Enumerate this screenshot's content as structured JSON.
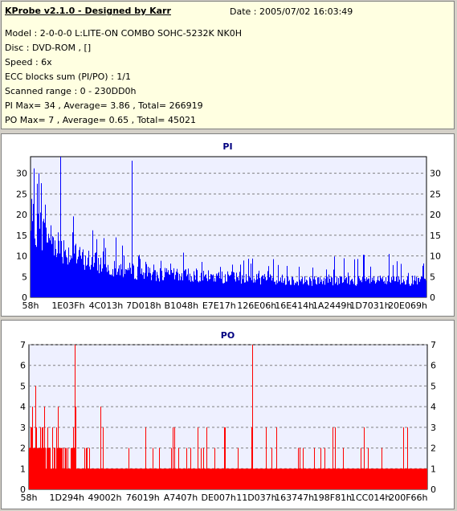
{
  "info": {
    "title": "KProbe v2.1.0 - Designed by Karr",
    "date": "Date : 2005/07/02 16:03:49",
    "lines": [
      "Model : 2-0-0-0 L:LITE-ON COMBO SOHC-5232K NK0H",
      "Disc : DVD-ROM ,  []",
      "Speed : 6x",
      "ECC blocks sum (PI/PO) : 1/1",
      "Scanned range : 0 - 230DD0h",
      "PI Max= 34 , Average= 3.86 , Total= 266919",
      "PO Max= 7 , Average= 0.65 , Total= 45021"
    ]
  },
  "colors": {
    "bars": "#0000ff",
    "po_bars": "#ff0000",
    "plot_bg": "#eef0ff",
    "grid": "#808080"
  },
  "chart_data": [
    {
      "type": "bar",
      "title": "PI",
      "ylim": [
        0,
        34
      ],
      "yticks": [
        0,
        5,
        10,
        15,
        20,
        25,
        30
      ],
      "xticks": [
        "58h",
        "1E03Fh",
        "4C013h",
        "7D018h",
        "B1048h",
        "E7E17h",
        "126E06h",
        "16E414h",
        "1A2449h",
        "1D7031h",
        "20E069h"
      ],
      "x_start": 0,
      "x_end": 2297296,
      "grid": "dashed horizontal",
      "profile": [
        {
          "x_frac": 0.0,
          "typ": 23,
          "max": 32
        },
        {
          "x_frac": 0.05,
          "typ": 18,
          "max": 27
        },
        {
          "x_frac": 0.1,
          "typ": 13,
          "max": 20
        },
        {
          "x_frac": 0.2,
          "typ": 9,
          "max": 15
        },
        {
          "x_frac": 0.3,
          "typ": 7,
          "max": 12
        },
        {
          "x_frac": 0.5,
          "typ": 6,
          "max": 11
        },
        {
          "x_frac": 0.7,
          "typ": 5,
          "max": 10
        },
        {
          "x_frac": 1.0,
          "typ": 5,
          "max": 11
        }
      ],
      "spikes": [
        {
          "x_frac": 0.075,
          "value": 34
        },
        {
          "x_frac": 0.255,
          "value": 33
        },
        {
          "x_frac": 0.02,
          "value": 30
        }
      ]
    },
    {
      "type": "bar",
      "title": "PO",
      "ylim": [
        0,
        7
      ],
      "yticks": [
        0,
        1,
        2,
        3,
        4,
        5,
        6,
        7
      ],
      "xticks": [
        "58h",
        "1D294h",
        "49002h",
        "76019h",
        "A7407h",
        "DE007h",
        "11D037h",
        "163747h",
        "198F81h",
        "1CC014h",
        "200F66h"
      ],
      "x_start": 0,
      "x_end": 2297296,
      "grid": "dashed horizontal",
      "profile": [
        {
          "x_frac": 0.0,
          "typ": 3,
          "max": 5
        },
        {
          "x_frac": 0.1,
          "typ": 2,
          "max": 4
        },
        {
          "x_frac": 0.2,
          "typ": 1,
          "max": 3
        },
        {
          "x_frac": 1.0,
          "typ": 1,
          "max": 3
        }
      ],
      "spikes": [
        {
          "x_frac": 0.115,
          "value": 7
        },
        {
          "x_frac": 0.56,
          "value": 7
        },
        {
          "x_frac": 0.18,
          "value": 4
        }
      ]
    }
  ]
}
